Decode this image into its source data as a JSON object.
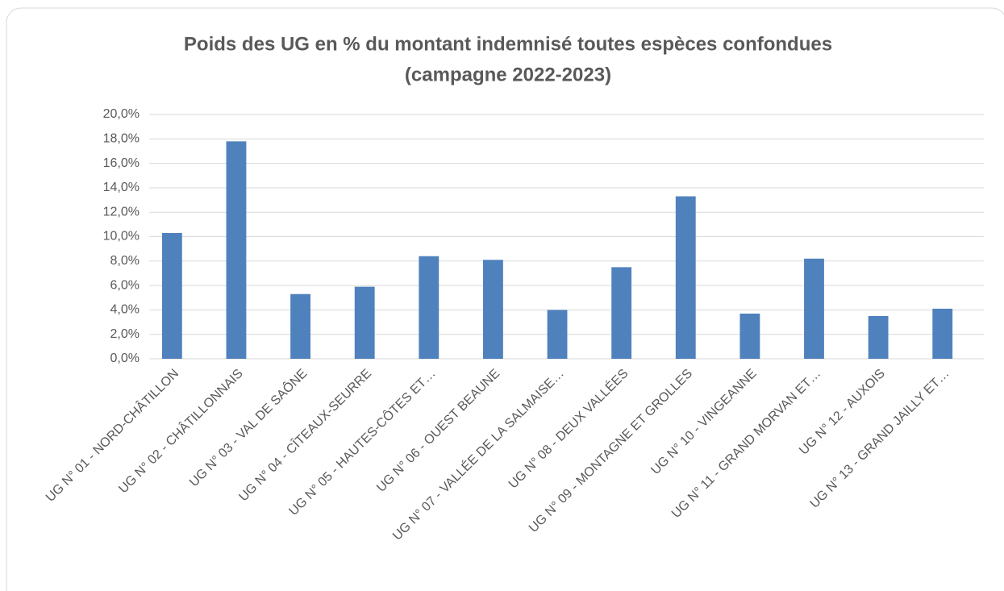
{
  "chart_data": {
    "type": "bar",
    "title": [
      "Poids des UG en % du montant indemnisé toutes espèces confondues",
      "(campagne 2022-2023)"
    ],
    "categories": [
      "UG N° 01 - NORD-CHÂTILLON",
      "UG N° 02 - CHÂTILLONNAIS",
      "UG N° 03 - VAL DE SAÔNE",
      "UG N° 04 - CÎTEAUX-SEURRE",
      "UG N° 05 - HAUTES-CÔTES ET…",
      "UG N° 06 - OUEST BEAUNE",
      "UG N° 07 - VALLÉE DE LA SALMAISE…",
      "UG N° 08 - DEUX VALLÉES",
      "UG N° 09 - MONTAGNE ET GROLLES",
      "UG N° 10 - VINGEANNE",
      "UG N° 11 - GRAND MORVAN ET…",
      "UG N° 12 - AUXOIS",
      "UG N° 13 - GRAND JAILLY ET…"
    ],
    "values": [
      10.3,
      17.8,
      5.3,
      5.9,
      8.4,
      8.1,
      4.0,
      7.5,
      13.3,
      3.7,
      8.2,
      3.5,
      4.1
    ],
    "color": "#4f81bd",
    "ylim": [
      0,
      20
    ],
    "yticks": [
      {
        "value": 0,
        "label": "0,0%"
      },
      {
        "value": 2,
        "label": "2,0%"
      },
      {
        "value": 4,
        "label": "4,0%"
      },
      {
        "value": 6,
        "label": "6,0%"
      },
      {
        "value": 8,
        "label": "8,0%"
      },
      {
        "value": 10,
        "label": "10,0%"
      },
      {
        "value": 12,
        "label": "12,0%"
      },
      {
        "value": 14,
        "label": "14,0%"
      },
      {
        "value": 16,
        "label": "16,0%"
      },
      {
        "value": 18,
        "label": "18,0%"
      },
      {
        "value": 20,
        "label": "20,0%"
      }
    ],
    "grid": true
  }
}
